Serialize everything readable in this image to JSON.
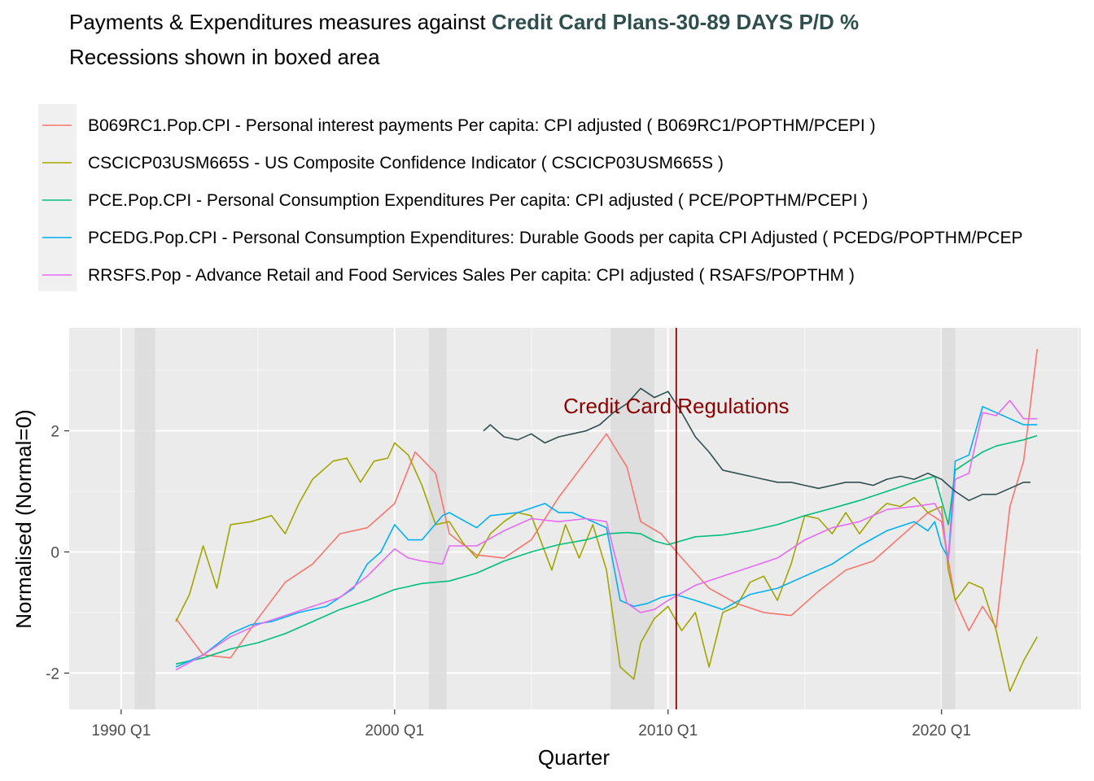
{
  "title": {
    "prefix": "Payments & Expenditures measures against ",
    "highlight": "Credit Card Plans-30-89 DAYS P/D %",
    "subtitle": "Recessions shown in boxed area"
  },
  "colors": {
    "highlight": "#2f4f4f",
    "annotation": "#8b0000",
    "panel": "#ebebeb",
    "recession": "#dcdcdc",
    "grid": "#ffffff"
  },
  "chart_data": {
    "type": "line",
    "xlabel": "Quarter",
    "ylabel": "Normalised (Normal=0)",
    "x_ticks": [
      "1990 Q1",
      "2000 Q1",
      "2010 Q1",
      "2020 Q1"
    ],
    "x_tick_values": [
      1990.0,
      2000.0,
      2010.0,
      2020.0
    ],
    "y_ticks": [
      "-2",
      "0",
      "2"
    ],
    "y_tick_values": [
      -2,
      0,
      2
    ],
    "xlim": [
      1988.1,
      2025.1
    ],
    "ylim": [
      -2.6,
      3.7
    ],
    "grid": true,
    "legend_position": "top",
    "recessions": [
      [
        1990.5,
        1991.25
      ],
      [
        2001.25,
        2001.9
      ],
      [
        2007.9,
        2009.5
      ],
      [
        2020.0,
        2020.5
      ]
    ],
    "vline": {
      "x": 2010.3,
      "label": "Credit Card Regulations",
      "label_y": 2.4
    },
    "series": [
      {
        "name": "B069RC1.Pop.CPI - Personal interest payments Per capita: CPI adjusted ( B069RC1/POPTHM/PCEPI )",
        "color": "#f8766d",
        "x": [
          1992.0,
          1993.0,
          1994.0,
          1995.0,
          1996.0,
          1997.0,
          1998.0,
          1999.0,
          2000.0,
          2000.75,
          2001.5,
          2002.0,
          2003.0,
          2004.0,
          2005.0,
          2006.0,
          2007.0,
          2007.75,
          2008.5,
          2009.0,
          2009.75,
          2010.5,
          2011.5,
          2012.5,
          2013.5,
          2014.5,
          2015.5,
          2016.5,
          2017.5,
          2018.5,
          2019.5,
          2020.0,
          2020.5,
          2021.0,
          2021.5,
          2022.0,
          2022.5,
          2023.0,
          2023.5
        ],
        "y": [
          -1.1,
          -1.7,
          -1.75,
          -1.1,
          -0.5,
          -0.2,
          0.3,
          0.4,
          0.8,
          1.65,
          1.3,
          0.3,
          -0.05,
          -0.1,
          0.2,
          0.9,
          1.5,
          1.95,
          1.4,
          0.5,
          0.3,
          -0.1,
          -0.6,
          -0.85,
          -1.0,
          -1.05,
          -0.65,
          -0.3,
          -0.15,
          0.25,
          0.65,
          0.5,
          -0.8,
          -1.3,
          -0.9,
          -1.25,
          0.75,
          1.5,
          3.35
        ]
      },
      {
        "name": "CSCICP03USM665S - US Composite Confidence Indicator ( CSCICP03USM665S )",
        "color": "#a3a500",
        "x": [
          1992.0,
          1992.5,
          1993.0,
          1993.5,
          1994.0,
          1994.75,
          1995.5,
          1996.0,
          1996.5,
          1997.0,
          1997.75,
          1998.25,
          1998.75,
          1999.25,
          1999.75,
          2000.0,
          2000.5,
          2001.0,
          2001.5,
          2002.0,
          2002.5,
          2003.0,
          2003.5,
          2004.0,
          2004.5,
          2005.0,
          2005.75,
          2006.25,
          2006.75,
          2007.25,
          2007.75,
          2008.25,
          2008.75,
          2009.0,
          2009.5,
          2010.0,
          2010.5,
          2011.0,
          2011.5,
          2012.0,
          2012.5,
          2013.0,
          2013.5,
          2014.0,
          2014.5,
          2015.0,
          2015.5,
          2016.0,
          2016.5,
          2017.0,
          2017.5,
          2018.0,
          2018.5,
          2019.0,
          2019.5,
          2020.0,
          2020.25,
          2020.5,
          2021.0,
          2021.5,
          2022.0,
          2022.5,
          2023.0,
          2023.5
        ],
        "y": [
          -1.15,
          -0.7,
          0.1,
          -0.6,
          0.45,
          0.5,
          0.6,
          0.3,
          0.8,
          1.2,
          1.5,
          1.55,
          1.15,
          1.5,
          1.55,
          1.8,
          1.6,
          1.1,
          0.45,
          0.5,
          0.15,
          -0.1,
          0.3,
          0.5,
          0.65,
          0.6,
          -0.3,
          0.45,
          -0.1,
          0.45,
          -0.3,
          -1.9,
          -2.1,
          -1.5,
          -1.1,
          -0.9,
          -1.3,
          -1.0,
          -1.9,
          -1.0,
          -0.9,
          -0.5,
          -0.4,
          -0.8,
          -0.2,
          0.6,
          0.55,
          0.3,
          0.65,
          0.3,
          0.6,
          0.8,
          0.75,
          0.9,
          0.65,
          0.75,
          -0.3,
          -0.8,
          -0.5,
          -0.6,
          -1.3,
          -2.3,
          -1.8,
          -1.4
        ]
      },
      {
        "name": "PCE.Pop.CPI - Personal Consumption Expenditures Per capita: CPI adjusted ( PCE/POPTHM/PCEPI )",
        "color": "#00bf7d",
        "x": [
          1992.0,
          1993.0,
          1994.0,
          1995.0,
          1996.0,
          1997.0,
          1998.0,
          1999.0,
          2000.0,
          2001.0,
          2002.0,
          2003.0,
          2004.0,
          2005.0,
          2006.0,
          2007.0,
          2007.75,
          2008.5,
          2009.0,
          2009.5,
          2010.0,
          2011.0,
          2012.0,
          2013.0,
          2014.0,
          2015.0,
          2016.0,
          2017.0,
          2018.0,
          2019.0,
          2019.75,
          2020.25,
          2020.5,
          2021.0,
          2021.5,
          2022.0,
          2022.5,
          2023.0,
          2023.5
        ],
        "y": [
          -1.85,
          -1.75,
          -1.6,
          -1.5,
          -1.35,
          -1.15,
          -0.95,
          -0.8,
          -0.62,
          -0.52,
          -0.48,
          -0.35,
          -0.15,
          0.0,
          0.12,
          0.2,
          0.3,
          0.32,
          0.3,
          0.18,
          0.12,
          0.25,
          0.28,
          0.35,
          0.45,
          0.6,
          0.72,
          0.85,
          1.0,
          1.15,
          1.25,
          0.45,
          1.35,
          1.5,
          1.65,
          1.75,
          1.8,
          1.85,
          1.92
        ]
      },
      {
        "name": "PCEDG.Pop.CPI - Personal Consumption Expenditures: Durable Goods per capita CPI Adjusted ( PCEDG/POPTHM/PCEP",
        "color": "#00b0f6",
        "x": [
          1992.0,
          1993.0,
          1994.0,
          1994.75,
          1995.5,
          1996.5,
          1997.5,
          1998.5,
          1999.0,
          1999.5,
          2000.0,
          2000.5,
          2001.0,
          2001.75,
          2002.0,
          2003.0,
          2003.5,
          2004.5,
          2005.5,
          2006.0,
          2006.5,
          2007.0,
          2007.75,
          2008.25,
          2008.75,
          2009.25,
          2009.75,
          2010.25,
          2011.0,
          2012.0,
          2013.0,
          2014.0,
          2015.0,
          2016.0,
          2017.0,
          2018.0,
          2019.0,
          2019.5,
          2019.75,
          2020.0,
          2020.25,
          2020.5,
          2021.0,
          2021.5,
          2022.0,
          2022.5,
          2023.0,
          2023.5
        ],
        "y": [
          -1.9,
          -1.7,
          -1.35,
          -1.2,
          -1.15,
          -1.0,
          -0.9,
          -0.6,
          -0.2,
          0.0,
          0.45,
          0.2,
          0.2,
          0.6,
          0.65,
          0.4,
          0.6,
          0.65,
          0.8,
          0.65,
          0.65,
          0.55,
          0.4,
          -0.8,
          -0.9,
          -0.85,
          -0.75,
          -0.7,
          -0.8,
          -0.95,
          -0.7,
          -0.6,
          -0.4,
          -0.2,
          0.1,
          0.35,
          0.5,
          0.35,
          0.5,
          0.1,
          -0.1,
          1.5,
          1.6,
          2.4,
          2.3,
          2.2,
          2.1,
          2.1
        ]
      },
      {
        "name": "RRSFS.Pop - Advance Retail and Food Services Sales Per capita: CPI adjusted ( RSAFS/POPTHM )",
        "color": "#e76bf3",
        "x": [
          1992.0,
          1993.0,
          1994.0,
          1995.0,
          1996.0,
          1997.0,
          1998.0,
          1999.0,
          2000.0,
          2000.5,
          2001.0,
          2001.75,
          2002.0,
          2003.0,
          2004.0,
          2005.0,
          2006.0,
          2007.0,
          2007.75,
          2008.5,
          2009.0,
          2009.5,
          2010.0,
          2011.0,
          2012.0,
          2013.0,
          2014.0,
          2015.0,
          2016.0,
          2017.0,
          2018.0,
          2019.0,
          2019.75,
          2020.0,
          2020.25,
          2020.5,
          2021.0,
          2021.5,
          2022.0,
          2022.5,
          2023.0,
          2023.5
        ],
        "y": [
          -1.95,
          -1.7,
          -1.4,
          -1.2,
          -1.05,
          -0.9,
          -0.75,
          -0.4,
          0.05,
          -0.1,
          -0.15,
          -0.2,
          0.1,
          0.1,
          0.35,
          0.55,
          0.5,
          0.55,
          0.5,
          -0.85,
          -1.0,
          -0.95,
          -0.8,
          -0.55,
          -0.4,
          -0.25,
          -0.1,
          0.2,
          0.4,
          0.5,
          0.7,
          0.75,
          0.8,
          0.6,
          -0.15,
          1.2,
          1.3,
          2.3,
          2.25,
          2.5,
          2.2,
          2.2
        ]
      },
      {
        "name": "Credit Card Plans-30-89 DAYS P/D %",
        "color": "#2f4f4f",
        "legend": false,
        "x": [
          2003.25,
          2003.5,
          2004.0,
          2004.5,
          2005.0,
          2005.5,
          2006.0,
          2006.5,
          2007.0,
          2007.5,
          2008.0,
          2008.5,
          2009.0,
          2009.5,
          2010.0,
          2010.5,
          2011.0,
          2011.5,
          2012.0,
          2012.5,
          2013.0,
          2013.5,
          2014.0,
          2014.5,
          2015.0,
          2015.5,
          2016.0,
          2016.5,
          2017.0,
          2017.5,
          2018.0,
          2018.5,
          2019.0,
          2019.5,
          2020.0,
          2020.5,
          2021.0,
          2021.5,
          2022.0,
          2022.5,
          2023.0,
          2023.25
        ],
        "y": [
          2.0,
          2.1,
          1.9,
          1.85,
          1.95,
          1.8,
          1.9,
          1.95,
          2.0,
          2.1,
          2.3,
          2.45,
          2.7,
          2.55,
          2.65,
          2.3,
          1.9,
          1.65,
          1.35,
          1.3,
          1.25,
          1.2,
          1.15,
          1.15,
          1.1,
          1.05,
          1.1,
          1.15,
          1.15,
          1.1,
          1.2,
          1.25,
          1.2,
          1.3,
          1.2,
          1.0,
          0.85,
          0.95,
          0.95,
          1.05,
          1.15,
          1.15
        ]
      }
    ]
  }
}
